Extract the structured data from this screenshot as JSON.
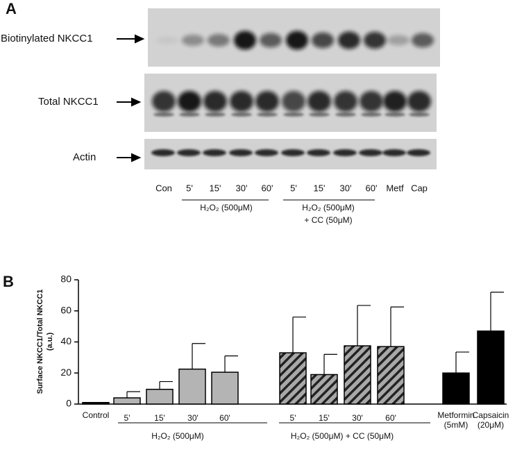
{
  "panel_a": {
    "label": "A",
    "blots": [
      "Biotinylated NKCC1",
      "Total NKCC1",
      "Actin"
    ],
    "lanes": [
      "Con",
      "5'",
      "15'",
      "30'",
      "60'",
      "5'",
      "15'",
      "30'",
      "60'",
      "Metf",
      "Cap"
    ],
    "group_1": "H₂O₂ (500μM)",
    "group_2_line_1": "H₂O₂ (500μM)",
    "group_2_line_2": "+ CC (50μM)"
  },
  "chart_data": {
    "type": "bar",
    "panel_label": "B",
    "y_label_line_1": "Surface NKCC1/Total NKCC1",
    "y_label_line_2": "(a.u.)",
    "categories": [
      "Control",
      "5'",
      "15'",
      "30'",
      "60'",
      "5'",
      "15'",
      "30'",
      "60'",
      "Metformin (5mM)",
      "Capsaicin (20μM)"
    ],
    "values": [
      1,
      4,
      9.5,
      22.5,
      20.5,
      33,
      19,
      37.5,
      37,
      20,
      47
    ],
    "errors": [
      null,
      4,
      5,
      16.5,
      10.5,
      23,
      13,
      26,
      25.5,
      13.5,
      25
    ],
    "colors": [
      "#000000",
      "#b4b4b4",
      "#b4b4b4",
      "#b4b4b4",
      "#b4b4b4",
      "#a8a8a8",
      "#a8a8a8",
      "#a8a8a8",
      "#a8a8a8",
      "#000000",
      "#000000"
    ],
    "hatched": [
      false,
      false,
      false,
      false,
      false,
      true,
      true,
      true,
      true,
      false,
      false
    ],
    "group_1": "H₂O₂ (500μM)",
    "group_2": "H₂O₂ (500μM) + CC (50μM)",
    "ylim": [
      0,
      80
    ],
    "yticks": [
      0,
      20,
      40,
      60,
      80
    ]
  }
}
